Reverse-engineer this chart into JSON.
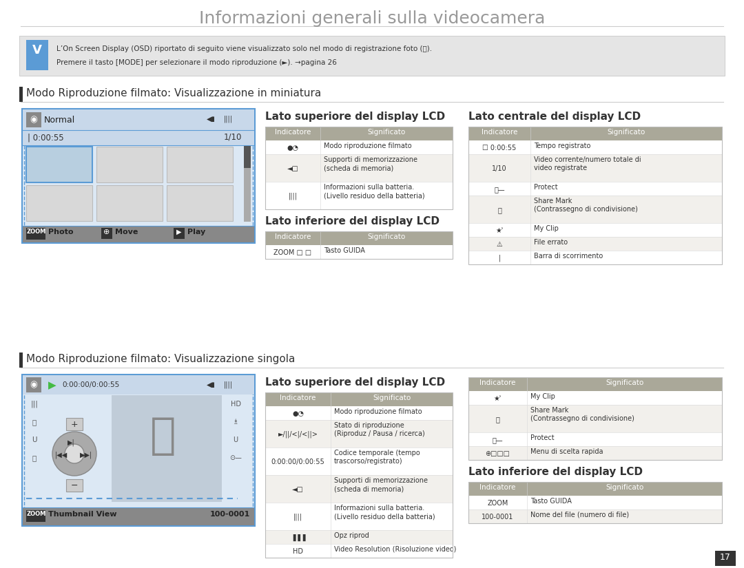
{
  "title": "Informazioni generali sulla videocamera",
  "bg_color": "#ffffff",
  "title_color": "#999999",
  "note_bg": "#e8e8e8",
  "note_text_1": "L’On Screen Display (OSD) riportato di seguito viene visualizzato solo nel modo di registrazione foto (⓸).",
  "note_text_2": "Premere il tasto [MODE] per selezionare il modo riproduzione (►). →pagina 26",
  "section1_title": "Modo Riproduzione filmato: Visualizzazione in miniatura",
  "section2_title": "Modo Riproduzione filmato: Visualizzazione singola",
  "table_header_bg": "#aaa899",
  "table_row_bg1": "#ffffff",
  "table_row_bg2": "#f2f0ec",
  "col1_header": "Indicatore",
  "col2_header": "Significato",
  "top_lcd_title": "Lato superiore del display LCD",
  "center_lcd_title": "Lato centrale del display LCD",
  "bottom_lcd_title": "Lato inferiore del display LCD",
  "lcd_border_color": "#5b9bd5",
  "lcd_bg": "#d8e4f0",
  "lcd_header_bg": "#c8d8ea",
  "zoom_bar_bg": "#909090",
  "top_rows_s1": [
    [
      "●◔",
      "Modo riproduzione filmato"
    ],
    [
      "◄□",
      "Supporti di memorizzazione\n(scheda di memoria)"
    ],
    [
      "||||",
      "Informazioni sulla batteria.\n(Livello residuo della batteria)"
    ]
  ],
  "bottom_rows_s1": [
    [
      "ZOOM □ □",
      "Tasto GUIDA"
    ]
  ],
  "center_rows_s1": [
    [
      "☐ 0:00:55",
      "Tempo registrato"
    ],
    [
      "1/10",
      "Video corrente/numero totale di\nvideo registrate"
    ],
    [
      "⓮—",
      "Protect"
    ],
    [
      "Ⓤ",
      "Share Mark\n(Contrassegno di condivisione)"
    ],
    [
      "★ʾ",
      "My Clip"
    ],
    [
      "⚠",
      "File errato"
    ],
    [
      "|",
      "Barra di scorrimento"
    ]
  ],
  "top_rows_s2": [
    [
      "●◔",
      "Modo riproduzione filmato"
    ],
    [
      "►/||/<|/<||>",
      "Stato di riproduzione\n(Riproduz / Pausa / ricerca)"
    ],
    [
      "0:00:00/0:00:55",
      "Codice temporale (tempo\ntrascorso/registrato)"
    ],
    [
      "◄□",
      "Supporti di memorizzazione\n(scheda di memoria)"
    ],
    [
      "||||",
      "Informazioni sulla batteria.\n(Livello residuo della batteria)"
    ],
    [
      "▐▐▐",
      "Opz riprod"
    ],
    [
      "HD",
      "Video Resolution (Risoluzione video)"
    ]
  ],
  "right_rows_s2": [
    [
      "★ʾ",
      "My Clip"
    ],
    [
      "Ⓤ",
      "Share Mark\n(Contrassegno di condivisione)"
    ],
    [
      "⓮—",
      "Protect"
    ],
    [
      "⊕□□□",
      "Menu di scelta rapida"
    ]
  ],
  "bottom_rows_s2": [
    [
      "ZOOM",
      "Tasto GUIDA"
    ],
    [
      "100-0001",
      "Nome del file (numero di file)"
    ]
  ]
}
